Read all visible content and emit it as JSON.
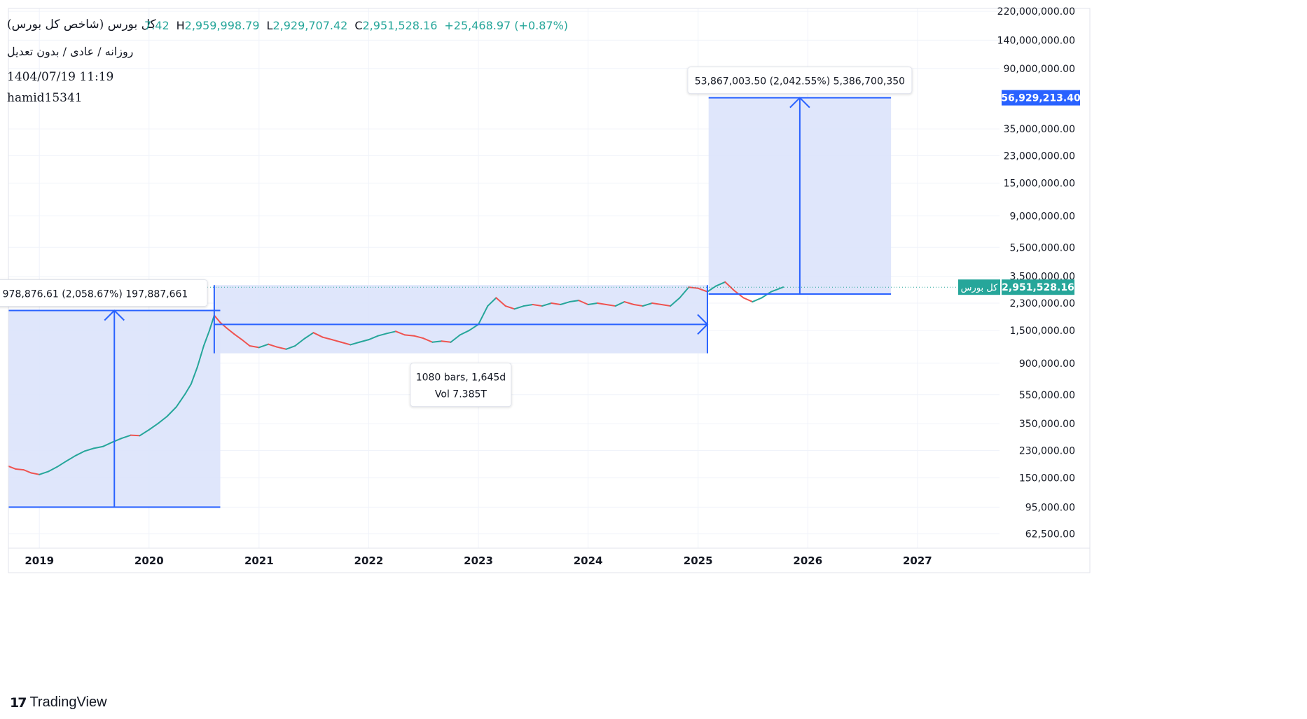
{
  "header": {
    "symbol_title": "(شاخص کل بورس) کل بورس",
    "ohlc": {
      "open_tail": "7.42",
      "high_label": "H",
      "high": "2,959,998.79",
      "low_label": "L",
      "low": "2,929,707.42",
      "close_label": "C",
      "close": "2,951,528.16",
      "change": "+25,468.97 (+0.87%)"
    },
    "interval": "روزانه / عادی / بدون تعدیل",
    "timestamp": "1404/07/19 11:19",
    "author": "hamid15341"
  },
  "chart_data": {
    "type": "line",
    "title": "(شاخص کل بورس) کل بورس",
    "y_scale": "log",
    "ylim": [
      50000,
      230000000
    ],
    "xlim": [
      "2018-09-20",
      "2027-10-01"
    ],
    "grid": true,
    "line_color": "#26a69a",
    "x_tick_labels": [
      "2019",
      "2020",
      "2021",
      "2022",
      "2023",
      "2024",
      "2025",
      "2026",
      "2027"
    ],
    "y_tick_labels": [
      "220,000,000.00",
      "140,000,000.00",
      "90,000,000.00",
      "35,000,000.00",
      "23,000,000.00",
      "15,000,000.00",
      "9,000,000.00",
      "5,500,000.00",
      "3,500,000.00",
      "2,300,000.00",
      "1,500,000.00",
      "900,000.00",
      "550,000.00",
      "350,000.00",
      "230,000.00",
      "150,000.00",
      "95,000.00",
      "62,500.00"
    ],
    "series": [
      {
        "x": [
          "2018-09-20",
          "2018-10-15",
          "2018-11-10",
          "2018-12-05",
          "2019-01-01",
          "2019-02-01",
          "2019-03-01",
          "2019-04-01",
          "2019-05-01",
          "2019-06-01",
          "2019-07-01",
          "2019-08-01",
          "2019-09-01",
          "2019-10-01",
          "2019-11-01",
          "2019-12-01",
          "2020-01-01",
          "2020-02-01",
          "2020-03-01",
          "2020-04-01",
          "2020-05-01",
          "2020-05-20",
          "2020-06-10",
          "2020-07-01",
          "2020-07-20",
          "2020-08-05",
          "2020-08-25",
          "2020-09-15",
          "2020-10-10",
          "2020-11-05",
          "2020-12-01",
          "2021-01-01",
          "2021-02-01",
          "2021-03-01",
          "2021-04-01",
          "2021-05-01",
          "2021-06-01",
          "2021-07-01",
          "2021-08-01",
          "2021-09-01",
          "2021-10-01",
          "2021-11-01",
          "2021-12-01",
          "2022-01-01",
          "2022-02-01",
          "2022-03-01",
          "2022-04-01",
          "2022-05-01",
          "2022-06-01",
          "2022-07-01",
          "2022-08-01",
          "2022-09-01",
          "2022-10-01",
          "2022-11-01",
          "2022-12-01",
          "2023-01-01",
          "2023-02-01",
          "2023-03-01",
          "2023-04-01",
          "2023-05-01",
          "2023-06-01",
          "2023-07-01",
          "2023-08-01",
          "2023-09-01",
          "2023-10-01",
          "2023-11-01",
          "2023-12-01",
          "2024-01-01",
          "2024-02-01",
          "2024-03-01",
          "2024-04-01",
          "2024-05-01",
          "2024-06-01",
          "2024-07-01",
          "2024-08-01",
          "2024-09-01",
          "2024-10-01",
          "2024-11-01",
          "2024-12-01",
          "2025-01-01",
          "2025-02-01",
          "2025-03-01",
          "2025-04-01",
          "2025-05-01",
          "2025-06-01",
          "2025-07-01",
          "2025-08-01",
          "2025-09-01",
          "2025-10-11"
        ],
        "y": [
          180000,
          172000,
          170000,
          162000,
          158000,
          166000,
          178000,
          195000,
          212000,
          228000,
          238000,
          245000,
          262000,
          278000,
          292000,
          290000,
          318000,
          352000,
          392000,
          455000,
          560000,
          650000,
          850000,
          1180000,
          1500000,
          1900000,
          1700000,
          1560000,
          1420000,
          1300000,
          1180000,
          1150000,
          1210000,
          1160000,
          1120000,
          1180000,
          1320000,
          1450000,
          1350000,
          1300000,
          1250000,
          1200000,
          1250000,
          1300000,
          1380000,
          1430000,
          1480000,
          1400000,
          1380000,
          1330000,
          1250000,
          1270000,
          1250000,
          1400000,
          1500000,
          1650000,
          2200000,
          2500000,
          2200000,
          2100000,
          2200000,
          2250000,
          2200000,
          2300000,
          2250000,
          2350000,
          2400000,
          2250000,
          2300000,
          2250000,
          2200000,
          2350000,
          2250000,
          2200000,
          2300000,
          2250000,
          2200000,
          2500000,
          2950000,
          2900000,
          2750000,
          3000000,
          3200000,
          2800000,
          2500000,
          2350000,
          2500000,
          2750000,
          2951528.16
        ]
      }
    ],
    "last_value_label": "2,951,528.16",
    "last_value_symbol": "کل بورس",
    "current_price_line": 2951528.16,
    "measure_tools": [
      {
        "type": "price_range",
        "x_from": "2018-09-20",
        "x_to": "2020-08-25",
        "y_from": 95000,
        "y_to": 2050000,
        "label": "978,876.61 (2,058.67%) 197,887,661"
      },
      {
        "type": "date_range",
        "x_from": "2020-08-05",
        "x_to": "2025-02-01",
        "y_from": 1050000,
        "y_to": 3050000,
        "arrow_y": 1650000,
        "label_lines": [
          "1080 bars, 1,645d",
          "Vol 7.385T"
        ]
      },
      {
        "type": "price_range",
        "x_from": "2025-02-05",
        "x_to": "2026-10-05",
        "y_from": 2650000,
        "y_to": 56929213.4,
        "label": "53,867,003.50 (2,042.55%) 5,386,700,350",
        "target_label": "56,929,213.40"
      }
    ],
    "colors": {
      "range_fill": "#dbe3fb",
      "range_line": "#2962ff",
      "up": "#26a69a",
      "down": "#ef5350",
      "grid": "#f0f3fa"
    }
  },
  "branding": {
    "logo_mark": "17",
    "logo_text": "TradingView"
  }
}
